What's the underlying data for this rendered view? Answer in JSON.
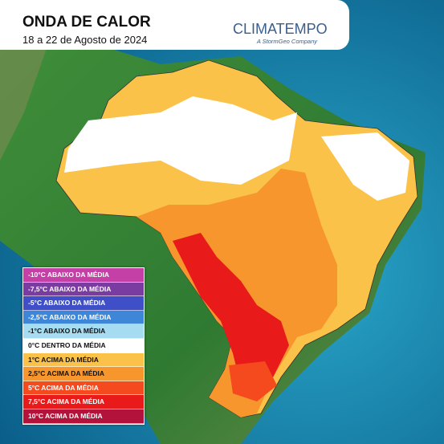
{
  "header": {
    "title": "ONDA DE CALOR",
    "subtitle": "18 a 22 de Agosto de 2024"
  },
  "logo": {
    "name": "CLIMATEMPO",
    "tagline": "A StormGeo Company"
  },
  "legend": {
    "items": [
      {
        "label": "-10°C ABAIXO DA MÉDIA",
        "color": "#c43fa6"
      },
      {
        "label": "-7,5°C ABAIXO DA MÉDIA",
        "color": "#7a3ca0"
      },
      {
        "label": "-5°C ABAIXO DA MÉDIA",
        "color": "#3f4fc8"
      },
      {
        "label": "-2,5°C ABAIXO DA MÉDIA",
        "color": "#3e86d8"
      },
      {
        "label": "-1°C ABAIXO DA MÉDIA",
        "color": "#a6dcf2"
      },
      {
        "label": "0°C DENTRO DA MÉDIA",
        "color": "#ffffff"
      },
      {
        "label": "1°C ACIMA DA MÉDIA",
        "color": "#fbc24a"
      },
      {
        "label": "2,5°C ACIMA DA MÉDIA",
        "color": "#f7962c"
      },
      {
        "label": "5°C ACIMA DA MÉDIA",
        "color": "#f44a1e"
      },
      {
        "label": "7,5°C ACIMA DA MÉDIA",
        "color": "#e81a1a"
      },
      {
        "label": "10°C ACIMA DA MÉDIA",
        "color": "#b3133a"
      }
    ]
  }
}
